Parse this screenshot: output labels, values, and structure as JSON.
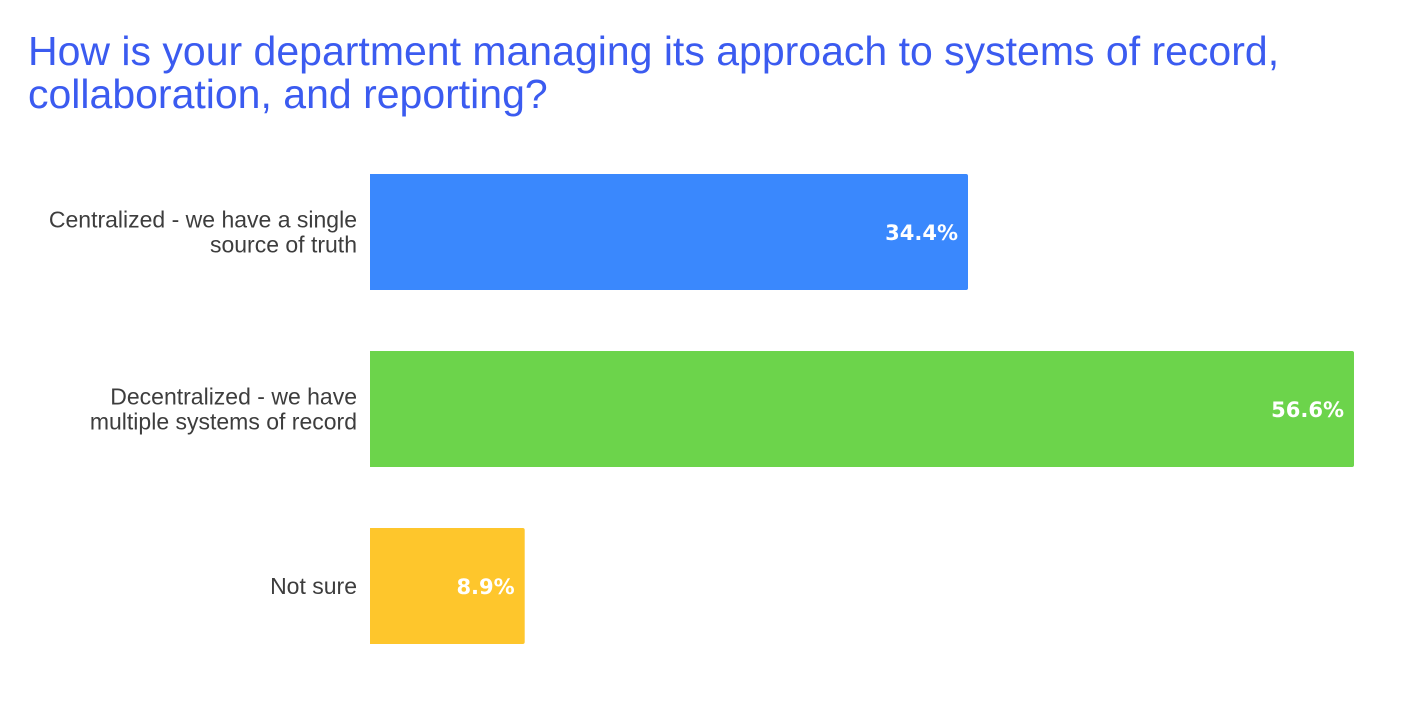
{
  "chart_data": {
    "type": "bar",
    "orientation": "horizontal",
    "title": "How is your department managing its approach to systems of record, collaboration, and reporting?",
    "categories": [
      "Centralized - we have a single source of truth",
      "Decentralized - we have multiple systems of record",
      "Not sure"
    ],
    "category_label_lines": [
      [
        "Centralized - we have a single",
        "source of truth"
      ],
      [
        "Decentralized - we have",
        "multiple systems of record"
      ],
      [
        "Not sure"
      ]
    ],
    "values": [
      34.4,
      56.6,
      8.9
    ],
    "value_labels": [
      "34.4%",
      "56.6%",
      "8.9%"
    ],
    "colors": [
      "#3a88fd",
      "#6cd44b",
      "#fec62c"
    ],
    "xlim": [
      0,
      56.6
    ],
    "grid": false,
    "legend": "none"
  }
}
